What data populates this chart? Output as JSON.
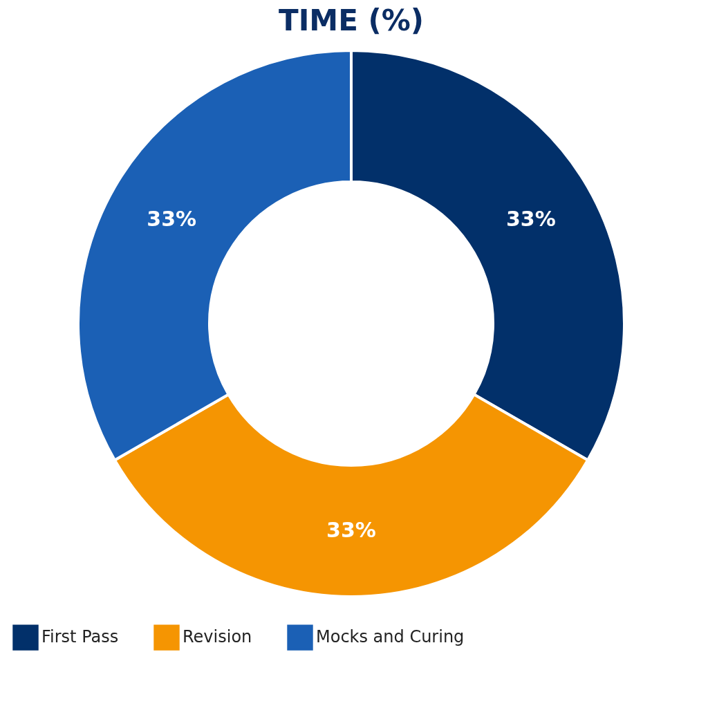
{
  "chart_data": {
    "type": "donut",
    "title": "TIME (%)",
    "categories": [
      "First Pass",
      "Revision",
      "Mocks and Curing"
    ],
    "values": [
      33,
      33,
      33
    ],
    "colors": [
      "#02306a",
      "#f59502",
      "#1b60b5"
    ],
    "value_labels": [
      "33%",
      "33%",
      "33%"
    ],
    "legend": "bottom"
  }
}
